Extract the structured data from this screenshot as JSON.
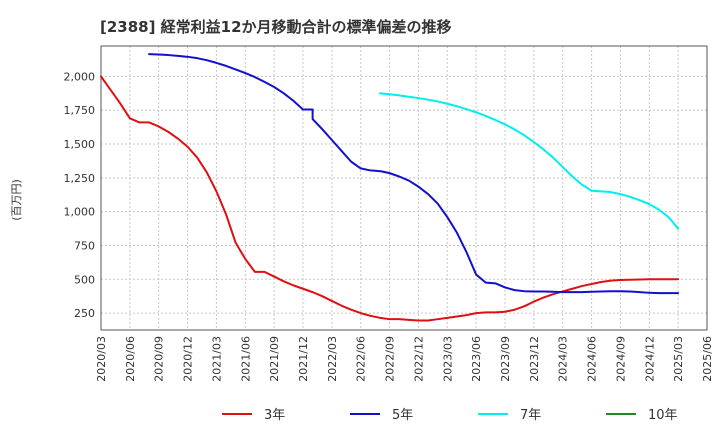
{
  "chart_data": {
    "type": "line",
    "title": "[2388]  経常利益12か月移動合計の標準偏差の推移",
    "ylabel": "(百万円)",
    "xlabel": "",
    "ylim": [
      125,
      2225
    ],
    "yticks": [
      250,
      500,
      750,
      1000,
      1250,
      1500,
      1750,
      2000
    ],
    "ytick_labels": [
      "250",
      "500",
      "750",
      "1,000",
      "1,250",
      "1,500",
      "1,750",
      "2,000"
    ],
    "x_range": [
      "2020-03",
      "2025-06"
    ],
    "xtick_labels": [
      "2020/03",
      "2020/06",
      "2020/09",
      "2020/12",
      "2021/03",
      "2021/06",
      "2021/09",
      "2021/12",
      "2022/03",
      "2022/06",
      "2022/09",
      "2022/12",
      "2023/03",
      "2023/06",
      "2023/09",
      "2023/12",
      "2024/03",
      "2024/06",
      "2024/09",
      "2024/12",
      "2025/03",
      "2025/06"
    ],
    "grid": true,
    "legend_position": "bottom",
    "series": [
      {
        "name": "3年",
        "color": "#dd1111",
        "points": [
          [
            "2020-03",
            2000
          ],
          [
            "2020-04",
            1900
          ],
          [
            "2020-05",
            1800
          ],
          [
            "2020-06",
            1690
          ],
          [
            "2020-07",
            1660
          ],
          [
            "2020-08",
            1660
          ],
          [
            "2020-09",
            1630
          ],
          [
            "2020-10",
            1590
          ],
          [
            "2020-11",
            1540
          ],
          [
            "2020-12",
            1480
          ],
          [
            "2021-01",
            1400
          ],
          [
            "2021-02",
            1290
          ],
          [
            "2021-03",
            1150
          ],
          [
            "2021-04",
            980
          ],
          [
            "2021-05",
            770
          ],
          [
            "2021-06",
            650
          ],
          [
            "2021-07",
            555
          ],
          [
            "2021-08",
            555
          ],
          [
            "2021-09",
            520
          ],
          [
            "2021-10",
            485
          ],
          [
            "2021-11",
            455
          ],
          [
            "2021-12",
            430
          ],
          [
            "2022-01",
            405
          ],
          [
            "2022-02",
            375
          ],
          [
            "2022-03",
            340
          ],
          [
            "2022-04",
            305
          ],
          [
            "2022-05",
            275
          ],
          [
            "2022-06",
            250
          ],
          [
            "2022-07",
            230
          ],
          [
            "2022-08",
            215
          ],
          [
            "2022-09",
            205
          ],
          [
            "2022-10",
            205
          ],
          [
            "2022-11",
            200
          ],
          [
            "2022-12",
            195
          ],
          [
            "2023-01",
            195
          ],
          [
            "2023-02",
            205
          ],
          [
            "2023-03",
            215
          ],
          [
            "2023-04",
            225
          ],
          [
            "2023-05",
            235
          ],
          [
            "2023-06",
            250
          ],
          [
            "2023-07",
            255
          ],
          [
            "2023-08",
            255
          ],
          [
            "2023-09",
            260
          ],
          [
            "2023-10",
            275
          ],
          [
            "2023-11",
            300
          ],
          [
            "2023-12",
            335
          ],
          [
            "2024-01",
            365
          ],
          [
            "2024-02",
            390
          ],
          [
            "2024-03",
            410
          ],
          [
            "2024-04",
            430
          ],
          [
            "2024-05",
            450
          ],
          [
            "2024-06",
            465
          ],
          [
            "2024-07",
            480
          ],
          [
            "2024-08",
            490
          ],
          [
            "2024-09",
            495
          ],
          [
            "2024-10",
            497
          ],
          [
            "2024-11",
            498
          ],
          [
            "2024-12",
            500
          ],
          [
            "2025-01",
            500
          ],
          [
            "2025-02",
            500
          ],
          [
            "2025-03",
            500
          ]
        ]
      },
      {
        "name": "5年",
        "color": "#1111cc",
        "points": [
          [
            "2020-08",
            2165
          ],
          [
            "2020-09",
            2162
          ],
          [
            "2020-10",
            2158
          ],
          [
            "2020-11",
            2152
          ],
          [
            "2020-12",
            2145
          ],
          [
            "2021-01",
            2135
          ],
          [
            "2021-02",
            2120
          ],
          [
            "2021-03",
            2100
          ],
          [
            "2021-04",
            2078
          ],
          [
            "2021-05",
            2052
          ],
          [
            "2021-06",
            2025
          ],
          [
            "2021-07",
            1995
          ],
          [
            "2021-08",
            1960
          ],
          [
            "2021-09",
            1922
          ],
          [
            "2021-10",
            1875
          ],
          [
            "2021-11",
            1820
          ],
          [
            "2021-12",
            1755
          ],
          [
            "2021-13",
            1755
          ],
          [
            "2022-01",
            1685
          ],
          [
            "2022-02",
            1610
          ],
          [
            "2022-03",
            1530
          ],
          [
            "2022-04",
            1450
          ],
          [
            "2022-05",
            1370
          ],
          [
            "2022-06",
            1320
          ],
          [
            "2022-07",
            1305
          ],
          [
            "2022-08",
            1300
          ],
          [
            "2022-09",
            1285
          ],
          [
            "2022-10",
            1260
          ],
          [
            "2022-11",
            1230
          ],
          [
            "2022-12",
            1185
          ],
          [
            "2023-01",
            1130
          ],
          [
            "2023-02",
            1060
          ],
          [
            "2023-03",
            960
          ],
          [
            "2023-04",
            845
          ],
          [
            "2023-05",
            700
          ],
          [
            "2023-06",
            535
          ],
          [
            "2023-07",
            475
          ],
          [
            "2023-08",
            470
          ],
          [
            "2023-09",
            440
          ],
          [
            "2023-10",
            420
          ],
          [
            "2023-11",
            412
          ],
          [
            "2023-12",
            410
          ],
          [
            "2024-01",
            410
          ],
          [
            "2024-02",
            408
          ],
          [
            "2024-03",
            405
          ],
          [
            "2024-04",
            405
          ],
          [
            "2024-05",
            405
          ],
          [
            "2024-06",
            408
          ],
          [
            "2024-07",
            410
          ],
          [
            "2024-08",
            412
          ],
          [
            "2024-09",
            412
          ],
          [
            "2024-10",
            410
          ],
          [
            "2024-11",
            405
          ],
          [
            "2024-12",
            400
          ],
          [
            "2025-01",
            398
          ],
          [
            "2025-02",
            398
          ],
          [
            "2025-03",
            398
          ]
        ]
      },
      {
        "name": "7年",
        "color": "#00eeee",
        "points": [
          [
            "2022-08",
            1875
          ],
          [
            "2022-09",
            1868
          ],
          [
            "2022-10",
            1860
          ],
          [
            "2022-11",
            1850
          ],
          [
            "2022-12",
            1840
          ],
          [
            "2023-01",
            1828
          ],
          [
            "2023-02",
            1815
          ],
          [
            "2023-03",
            1798
          ],
          [
            "2023-04",
            1780
          ],
          [
            "2023-05",
            1758
          ],
          [
            "2023-06",
            1735
          ],
          [
            "2023-07",
            1708
          ],
          [
            "2023-08",
            1678
          ],
          [
            "2023-09",
            1645
          ],
          [
            "2023-10",
            1608
          ],
          [
            "2023-11",
            1565
          ],
          [
            "2023-12",
            1515
          ],
          [
            "2024-01",
            1460
          ],
          [
            "2024-02",
            1400
          ],
          [
            "2024-03",
            1330
          ],
          [
            "2024-04",
            1260
          ],
          [
            "2024-05",
            1200
          ],
          [
            "2024-06",
            1155
          ],
          [
            "2024-07",
            1150
          ],
          [
            "2024-08",
            1145
          ],
          [
            "2024-09",
            1130
          ],
          [
            "2024-10",
            1110
          ],
          [
            "2024-11",
            1085
          ],
          [
            "2024-12",
            1055
          ],
          [
            "2025-01",
            1015
          ],
          [
            "2025-02",
            960
          ],
          [
            "2025-03",
            875
          ]
        ]
      },
      {
        "name": "10年",
        "color": "#228822",
        "points": []
      }
    ]
  }
}
